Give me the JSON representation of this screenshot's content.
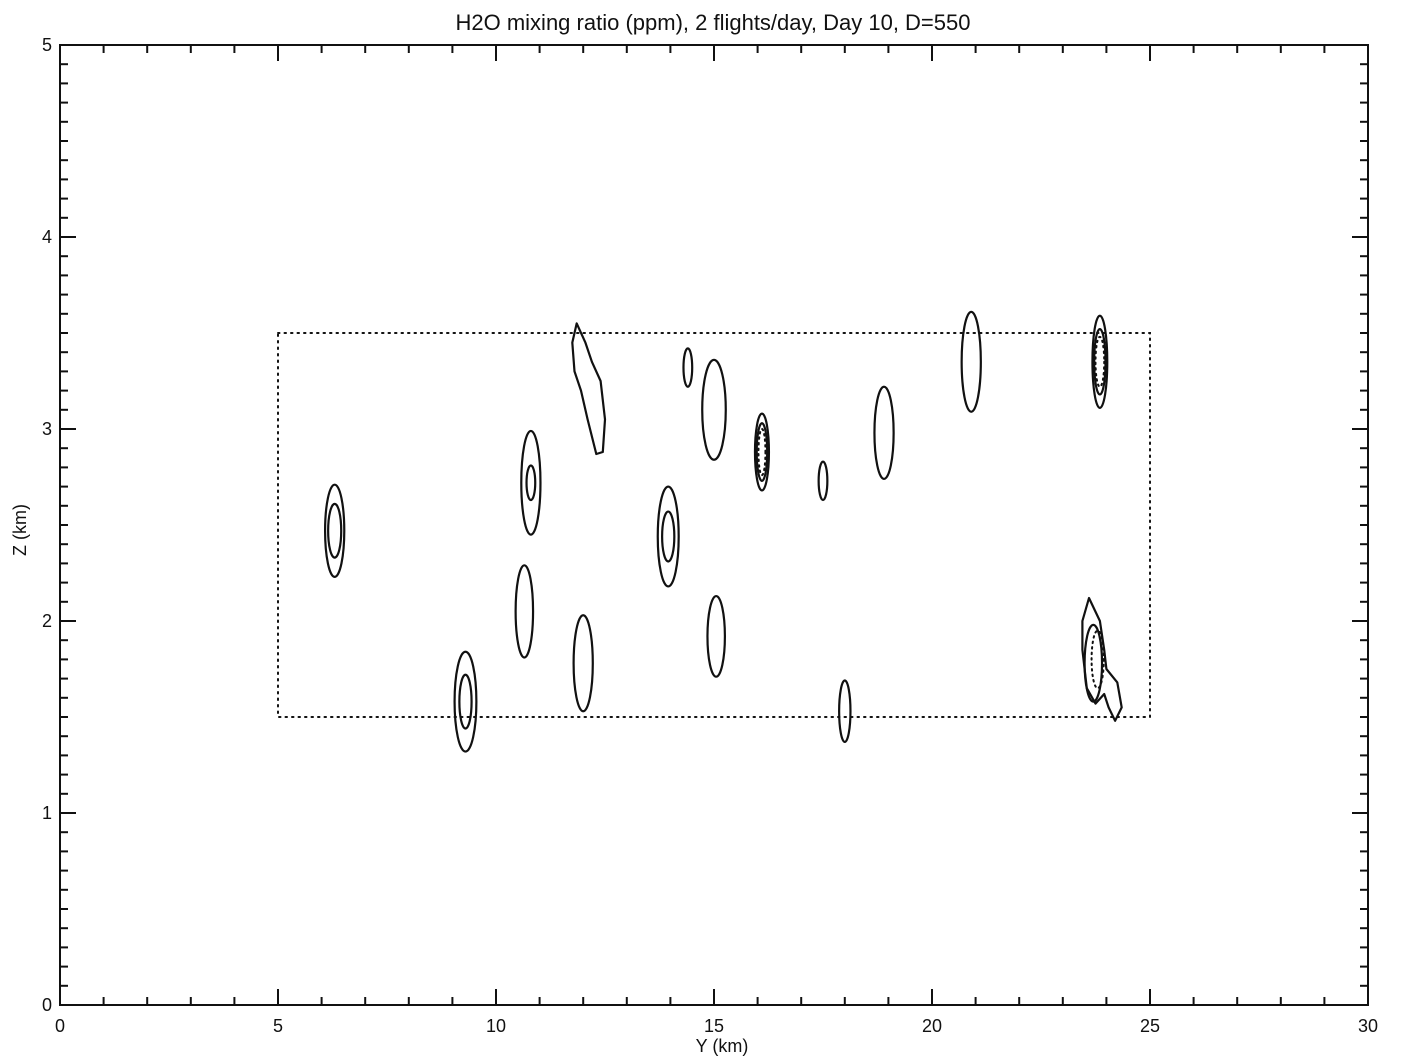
{
  "chart_data": {
    "type": "contour",
    "title": "H2O mixing ratio (ppm), 2 flights/day, Day 10, D=550",
    "xlabel": "Y (km)",
    "ylabel": "Z (km)",
    "xlim": [
      0,
      30
    ],
    "ylim": [
      0,
      5
    ],
    "x_ticks": [
      0,
      5,
      10,
      15,
      20,
      25,
      30
    ],
    "y_ticks": [
      0,
      1,
      2,
      3,
      4,
      5
    ],
    "x_tick_labels": [
      "0",
      "5",
      "10",
      "15",
      "20",
      "25",
      "30"
    ],
    "y_tick_labels": [
      "0",
      "1",
      "2",
      "3",
      "4",
      "5"
    ],
    "grid": false,
    "dotted_region": {
      "y_range": [
        5,
        25
      ],
      "z_range": [
        1.5,
        3.5
      ]
    },
    "contours": [
      {
        "center": [
          6.3,
          2.47
        ],
        "rings": [
          [
            0.22,
            0.24
          ],
          [
            0.15,
            0.14
          ]
        ]
      },
      {
        "center": [
          9.3,
          1.58
        ],
        "rings": [
          [
            0.25,
            0.26
          ],
          [
            0.14,
            0.14
          ]
        ]
      },
      {
        "center": [
          10.65,
          2.05
        ],
        "rings": [
          [
            0.2,
            0.24
          ]
        ]
      },
      {
        "center": [
          10.8,
          2.72
        ],
        "rings": [
          [
            0.22,
            0.27
          ],
          [
            0.1,
            0.09
          ]
        ]
      },
      {
        "center": [
          12.0,
          1.78
        ],
        "rings": [
          [
            0.22,
            0.25
          ]
        ]
      },
      {
        "center": [
          12.3,
          3.1
        ],
        "shape": "irregular"
      },
      {
        "center": [
          13.95,
          2.44
        ],
        "rings": [
          [
            0.24,
            0.26
          ],
          [
            0.14,
            0.13
          ]
        ]
      },
      {
        "center": [
          14.4,
          3.32
        ],
        "rings": [
          [
            0.1,
            0.1
          ]
        ]
      },
      {
        "center": [
          15.0,
          3.1
        ],
        "rings": [
          [
            0.27,
            0.26
          ]
        ]
      },
      {
        "center": [
          15.05,
          1.92
        ],
        "rings": [
          [
            0.2,
            0.21
          ]
        ]
      },
      {
        "center": [
          16.1,
          2.88
        ],
        "rings": [
          [
            0.16,
            0.2
          ],
          [
            0.12,
            0.15
          ]
        ],
        "dotted_core": [
          0.08,
          0.12
        ]
      },
      {
        "center": [
          17.5,
          2.73
        ],
        "rings": [
          [
            0.1,
            0.1
          ]
        ]
      },
      {
        "center": [
          18.0,
          1.53
        ],
        "rings": [
          [
            0.13,
            0.16
          ]
        ]
      },
      {
        "center": [
          18.9,
          2.98
        ],
        "rings": [
          [
            0.22,
            0.24
          ]
        ]
      },
      {
        "center": [
          20.9,
          3.35
        ],
        "rings": [
          [
            0.22,
            0.26
          ]
        ]
      },
      {
        "center": [
          23.85,
          3.35
        ],
        "rings": [
          [
            0.17,
            0.24
          ],
          [
            0.13,
            0.17
          ]
        ],
        "dotted_core": [
          0.1,
          0.13
        ]
      },
      {
        "center": [
          23.8,
          1.8
        ],
        "shape": "irregular",
        "dotted_core": [
          0.14,
          0.15
        ]
      }
    ]
  }
}
